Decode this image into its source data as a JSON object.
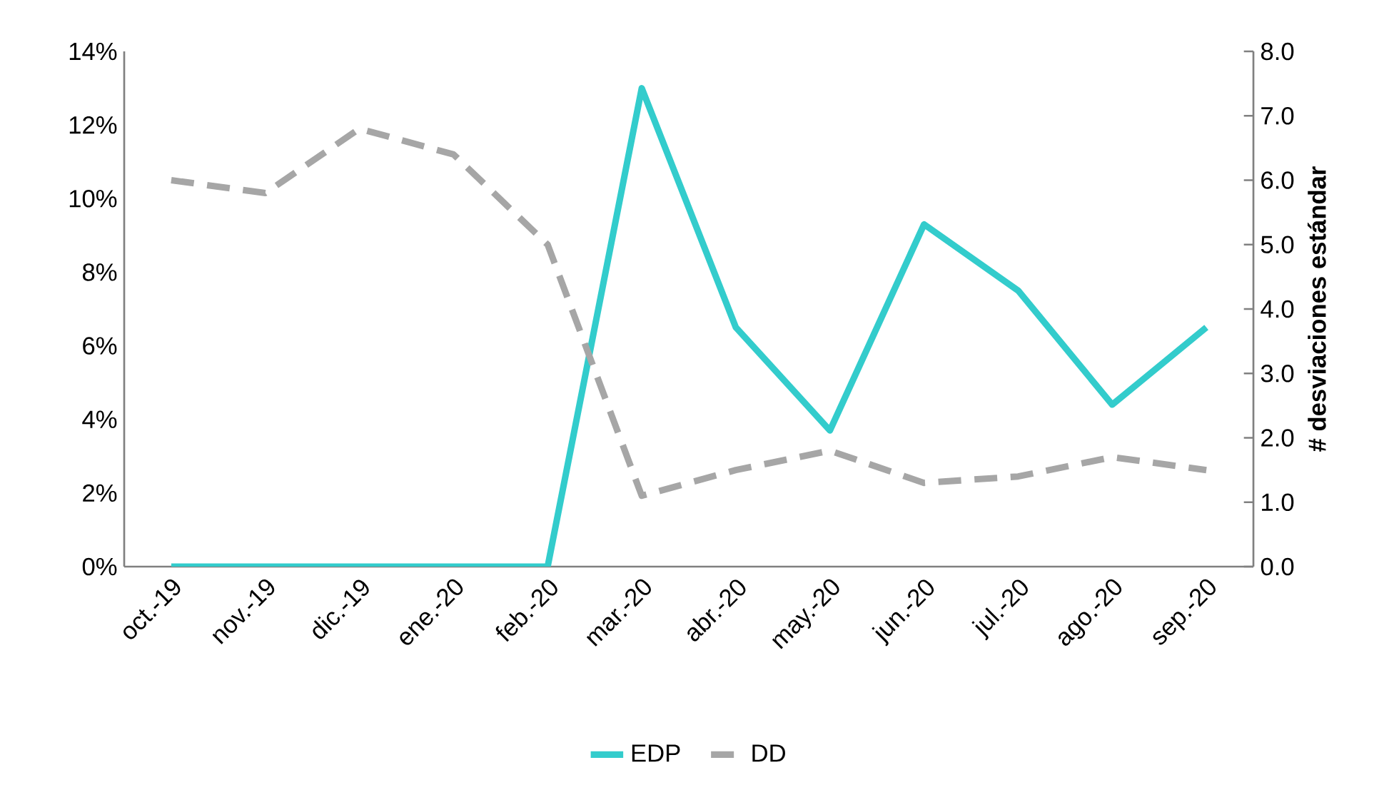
{
  "chart_data": {
    "type": "line",
    "categories": [
      "oct.-19",
      "nov.-19",
      "dic.-19",
      "ene.-20",
      "feb.-20",
      "mar.-20",
      "abr.-20",
      "may.-20",
      "jun.-20",
      "jul.-20",
      "ago.-20",
      "sep.-20"
    ],
    "series": [
      {
        "name": "EDP",
        "color": "#33cccc",
        "line_style": "solid",
        "axis": "y",
        "values": [
          0,
          0,
          0,
          0,
          0,
          13.0,
          6.5,
          3.7,
          9.3,
          7.5,
          4.4,
          6.5
        ]
      },
      {
        "name": "DD",
        "color": "#a6a6a6",
        "line_style": "dashed",
        "axis": "y2",
        "values": [
          6.0,
          5.8,
          6.8,
          6.4,
          5.0,
          1.1,
          1.5,
          1.8,
          1.3,
          1.4,
          1.7,
          1.5
        ]
      }
    ],
    "ylim": [
      0,
      14
    ],
    "yticks": [
      {
        "value": 0,
        "label": "0%"
      },
      {
        "value": 2,
        "label": "2%"
      },
      {
        "value": 4,
        "label": "4%"
      },
      {
        "value": 6,
        "label": "6%"
      },
      {
        "value": 8,
        "label": "8%"
      },
      {
        "value": 10,
        "label": "10%"
      },
      {
        "value": 12,
        "label": "12%"
      },
      {
        "value": 14,
        "label": "14%"
      }
    ],
    "y2label": "# desviaciones estándar",
    "y2lim": [
      0,
      8
    ],
    "y2ticks": [
      {
        "value": 0,
        "label": "0.0"
      },
      {
        "value": 1,
        "label": "1.0"
      },
      {
        "value": 2,
        "label": "2.0"
      },
      {
        "value": 3,
        "label": "3.0"
      },
      {
        "value": 4,
        "label": "4.0"
      },
      {
        "value": 5,
        "label": "5.0"
      },
      {
        "value": 6,
        "label": "6.0"
      },
      {
        "value": 7,
        "label": "7.0"
      },
      {
        "value": 8,
        "label": "8.0"
      }
    ],
    "legend": "bottom"
  }
}
